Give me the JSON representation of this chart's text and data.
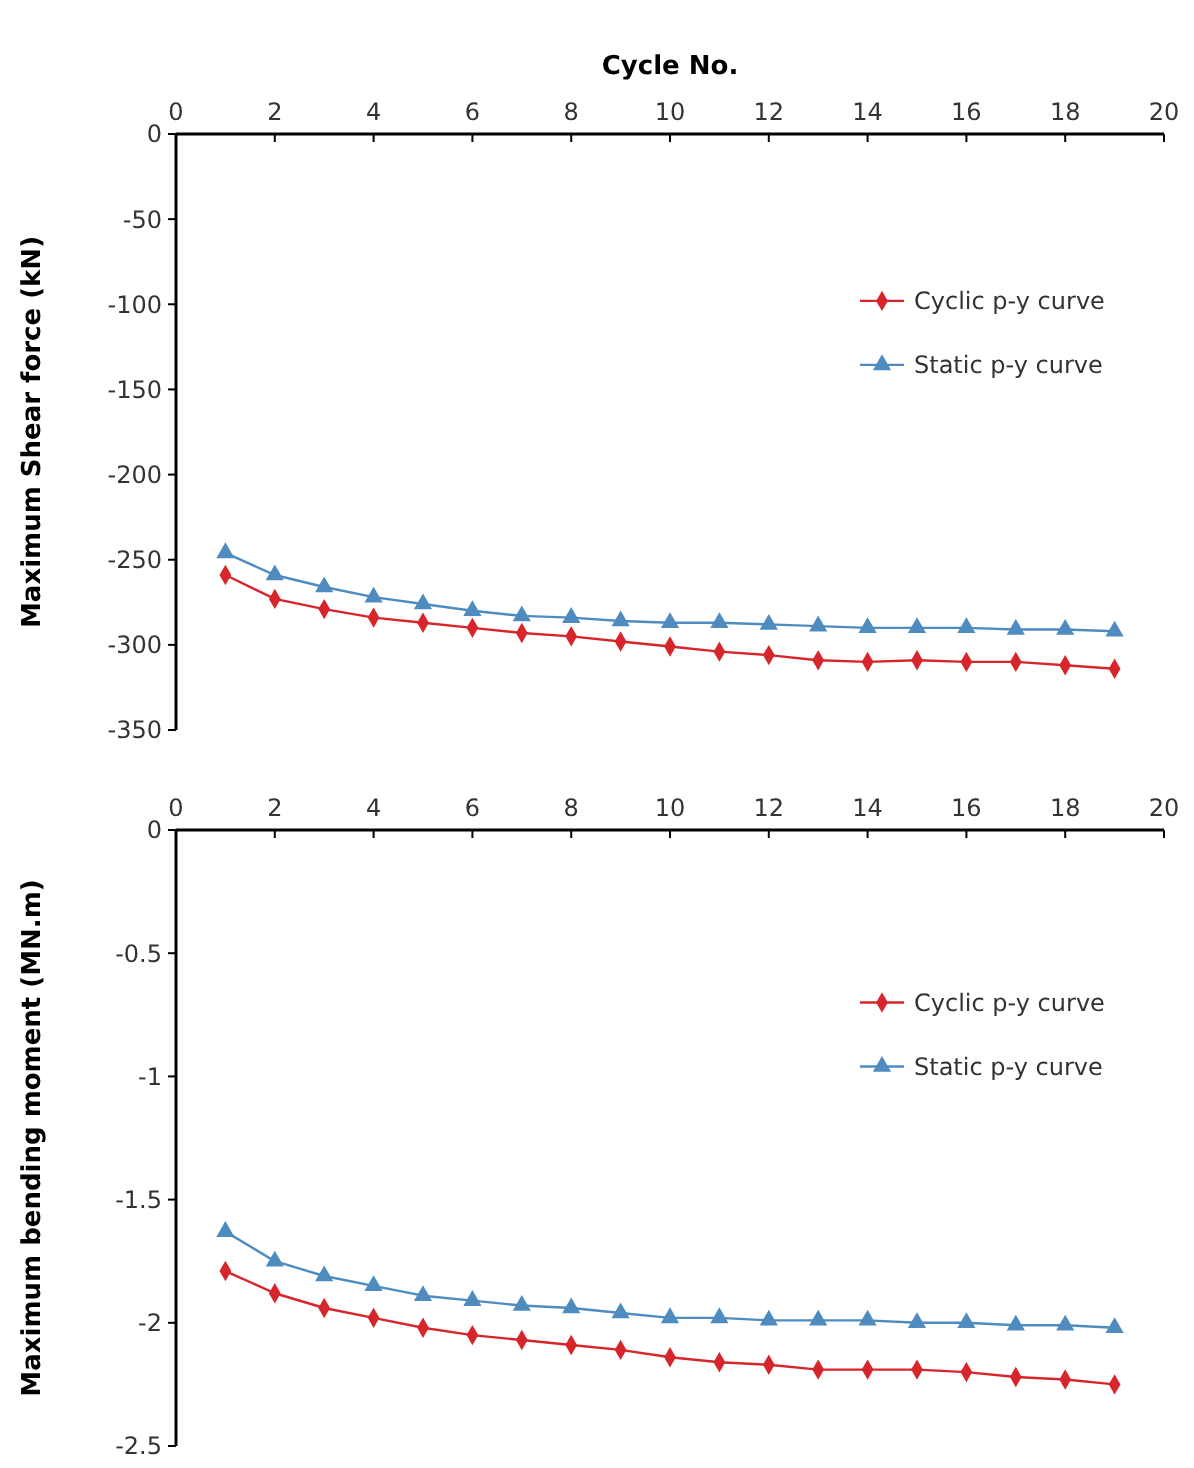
{
  "chart_data": [
    {
      "type": "line",
      "xlabel": "Cycle No.",
      "ylabel": "Maximum Shear force (kN)",
      "x": [
        1,
        2,
        3,
        4,
        5,
        6,
        7,
        8,
        9,
        10,
        11,
        12,
        13,
        14,
        15,
        16,
        17,
        18,
        19
      ],
      "xlim": [
        0,
        20
      ],
      "xticks": [
        0,
        2,
        4,
        6,
        8,
        10,
        12,
        14,
        16,
        18,
        20
      ],
      "ylim": [
        -350,
        0
      ],
      "yticks": [
        -350,
        -300,
        -250,
        -200,
        -150,
        -100,
        -50,
        0
      ],
      "legend": "right",
      "grid": false,
      "series": [
        {
          "name": "Cyclic p-y curve",
          "color": "#d7262b",
          "marker": "diamond",
          "values": [
            -259,
            -273,
            -279,
            -284,
            -287,
            -290,
            -293,
            -295,
            -298,
            -301,
            -304,
            -306,
            -309,
            -310,
            -309,
            -310,
            -310,
            -312,
            -314
          ]
        },
        {
          "name": "Static p-y curve",
          "color": "#4e8bbf",
          "marker": "triangle",
          "values": [
            -246,
            -259,
            -266,
            -272,
            -276,
            -280,
            -283,
            -284,
            -286,
            -287,
            -287,
            -288,
            -289,
            -290,
            -290,
            -290,
            -291,
            -291,
            -292
          ]
        }
      ]
    },
    {
      "type": "line",
      "ylabel": "Maximum bending moment (MN.m)",
      "x": [
        1,
        2,
        3,
        4,
        5,
        6,
        7,
        8,
        9,
        10,
        11,
        12,
        13,
        14,
        15,
        16,
        17,
        18,
        19
      ],
      "xlim": [
        0,
        20
      ],
      "xticks": [
        0,
        2,
        4,
        6,
        8,
        10,
        12,
        14,
        16,
        18,
        20
      ],
      "ylim": [
        -2.5,
        0
      ],
      "yticks": [
        -2.5,
        -2,
        -1.5,
        -1,
        -0.5,
        0
      ],
      "legend": "right",
      "grid": false,
      "series": [
        {
          "name": "Cyclic p-y curve",
          "color": "#d7262b",
          "marker": "diamond",
          "values": [
            -1.79,
            -1.88,
            -1.94,
            -1.98,
            -2.02,
            -2.05,
            -2.07,
            -2.09,
            -2.11,
            -2.14,
            -2.16,
            -2.17,
            -2.19,
            -2.19,
            -2.19,
            -2.2,
            -2.22,
            -2.23,
            -2.25
          ]
        },
        {
          "name": "Static p-y curve",
          "color": "#4e8bbf",
          "marker": "triangle",
          "values": [
            -1.63,
            -1.75,
            -1.81,
            -1.85,
            -1.89,
            -1.91,
            -1.93,
            -1.94,
            -1.96,
            -1.98,
            -1.98,
            -1.99,
            -1.99,
            -1.99,
            -2.0,
            -2.0,
            -2.01,
            -2.01,
            -2.02
          ]
        }
      ]
    }
  ]
}
